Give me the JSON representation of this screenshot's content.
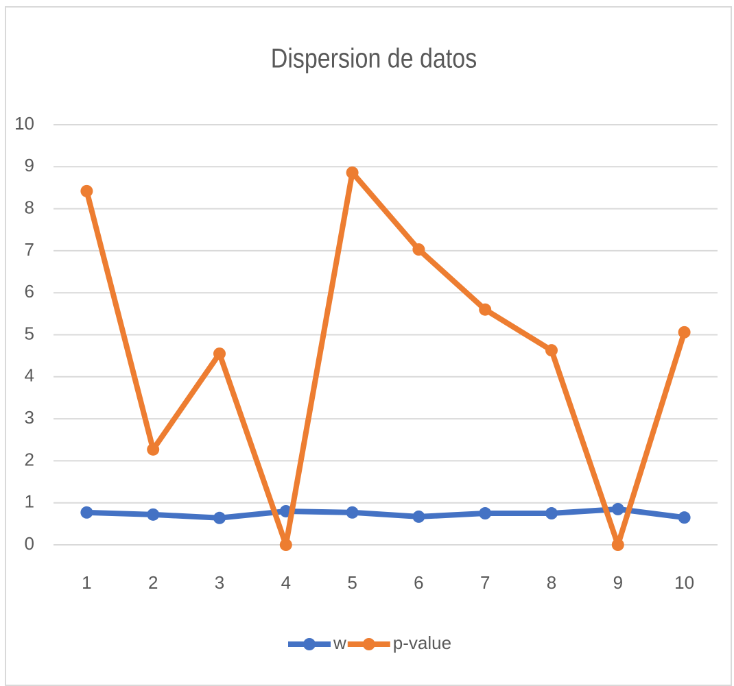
{
  "chart_data": {
    "type": "line",
    "title": "Dispersion de datos",
    "categories": [
      "1",
      "2",
      "3",
      "4",
      "5",
      "6",
      "7",
      "8",
      "9",
      "10"
    ],
    "series": [
      {
        "name": "w",
        "color": "#4472c4",
        "values": [
          0.77,
          0.72,
          0.64,
          0.8,
          0.77,
          0.67,
          0.75,
          0.75,
          0.85,
          0.65
        ]
      },
      {
        "name": "p-value",
        "color": "#ed7d31",
        "values": [
          8.42,
          2.27,
          4.55,
          0,
          8.86,
          7.03,
          5.6,
          4.63,
          0,
          5.06
        ]
      }
    ],
    "ylim": [
      0,
      10
    ],
    "yticks": [
      0,
      1,
      2,
      3,
      4,
      5,
      6,
      7,
      8,
      9,
      10
    ],
    "grid": true,
    "legend": "bottom"
  }
}
